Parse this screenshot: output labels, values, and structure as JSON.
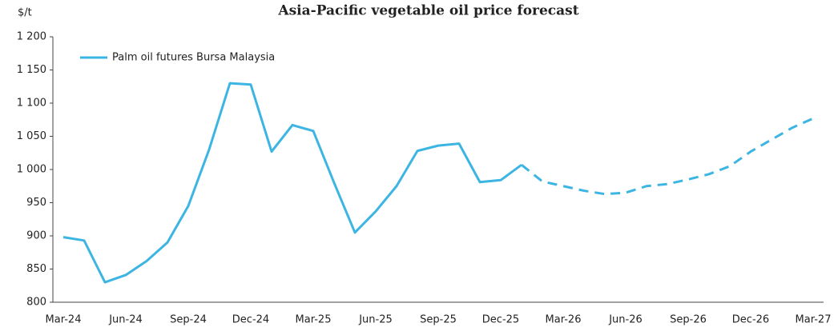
{
  "chart_data": {
    "type": "line",
    "title": "Asia-Pacific vegetable oil price forecast",
    "y_label": "$/t",
    "categories": [
      "Mar-24",
      null,
      null,
      "Jun-24",
      null,
      null,
      "Sep-24",
      null,
      null,
      "Dec-24",
      null,
      null,
      "Mar-25",
      null,
      null,
      "Jun-25",
      null,
      null,
      "Sep-25",
      null,
      null,
      "Dec-25",
      null,
      null,
      "Mar-26",
      null,
      null,
      "Jun-26",
      null,
      null,
      "Sep-26",
      null,
      null,
      "Dec-26",
      null,
      null,
      "Mar-27"
    ],
    "series": [
      {
        "name": "Palm oil futures Bursa Malaysia",
        "color": "#3db5e3",
        "values": [
          898,
          893,
          830,
          841,
          862,
          890,
          945,
          1030,
          1130,
          1128,
          1027,
          1067,
          1058,
          980,
          905,
          937,
          975,
          1028,
          1036,
          1039,
          981,
          984,
          1007,
          null,
          null,
          null,
          null,
          null,
          null,
          null,
          null,
          null,
          null,
          null,
          null,
          null,
          null
        ]
      },
      {
        "color": "#3db5e3",
        "dashed": true,
        "values": [
          null,
          null,
          null,
          null,
          null,
          null,
          null,
          null,
          null,
          null,
          null,
          null,
          null,
          null,
          null,
          null,
          null,
          null,
          null,
          null,
          null,
          null,
          1007,
          982,
          975,
          968,
          963,
          965,
          975,
          978,
          985,
          993,
          1005,
          1027,
          1045,
          1063,
          1077
        ]
      }
    ],
    "ylim": [
      800,
      1200
    ],
    "yticks": [
      800,
      850,
      900,
      950,
      {
        "value": 1000,
        "label": "1 000"
      },
      {
        "value": 1050,
        "label": "1 050"
      },
      {
        "value": 1100,
        "label": "1 100"
      },
      {
        "value": 1150,
        "label": "1 150"
      },
      {
        "value": 1200,
        "label": "1 200"
      }
    ],
    "legend": "top-left"
  }
}
